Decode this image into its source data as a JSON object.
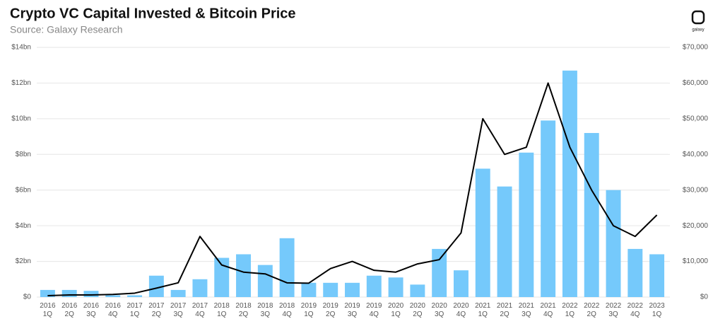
{
  "chart_data": {
    "type": "bar-line",
    "title": "Crypto VC Capital Invested & Bitcoin Price",
    "subtitle": "Source: Galaxy Research",
    "logo_text": "galaxy",
    "categories": [
      [
        "2016",
        "1Q"
      ],
      [
        "2016",
        "2Q"
      ],
      [
        "2016",
        "3Q"
      ],
      [
        "2016",
        "4Q"
      ],
      [
        "2017",
        "1Q"
      ],
      [
        "2017",
        "2Q"
      ],
      [
        "2017",
        "3Q"
      ],
      [
        "2017",
        "4Q"
      ],
      [
        "2018",
        "1Q"
      ],
      [
        "2018",
        "2Q"
      ],
      [
        "2018",
        "3Q"
      ],
      [
        "2018",
        "4Q"
      ],
      [
        "2019",
        "1Q"
      ],
      [
        "2019",
        "2Q"
      ],
      [
        "2019",
        "3Q"
      ],
      [
        "2019",
        "4Q"
      ],
      [
        "2020",
        "1Q"
      ],
      [
        "2020",
        "2Q"
      ],
      [
        "2020",
        "3Q"
      ],
      [
        "2020",
        "4Q"
      ],
      [
        "2021",
        "1Q"
      ],
      [
        "2021",
        "2Q"
      ],
      [
        "2021",
        "3Q"
      ],
      [
        "2021",
        "4Q"
      ],
      [
        "2022",
        "1Q"
      ],
      [
        "2022",
        "2Q"
      ],
      [
        "2022",
        "3Q"
      ],
      [
        "2022",
        "4Q"
      ],
      [
        "2023",
        "1Q"
      ]
    ],
    "series": [
      {
        "kind": "bar",
        "color": "#75c9fb",
        "values": [
          0.4,
          0.4,
          0.35,
          0.1,
          0.1,
          1.2,
          0.4,
          1.0,
          2.2,
          2.4,
          1.8,
          3.3,
          0.8,
          0.8,
          0.8,
          1.2,
          1.1,
          0.7,
          2.7,
          1.5,
          7.2,
          6.2,
          8.1,
          9.9,
          12.7,
          9.2,
          6.0,
          2.7,
          2.4
        ]
      },
      {
        "kind": "line",
        "axis": "y2",
        "color": "#000000",
        "values": [
          400,
          600,
          600,
          750,
          1100,
          2500,
          4000,
          17000,
          9000,
          7000,
          6500,
          4000,
          3900,
          8000,
          10000,
          7500,
          7000,
          9300,
          10500,
          18000,
          50000,
          40000,
          42000,
          60000,
          42000,
          30000,
          20000,
          17000,
          23000
        ]
      }
    ],
    "ylim": [
      0,
      14
    ],
    "yticks": [
      {
        "value": 0,
        "label": "$0"
      },
      {
        "value": 2,
        "label": "$2bn"
      },
      {
        "value": 4,
        "label": "$4bn"
      },
      {
        "value": 6,
        "label": "$6bn"
      },
      {
        "value": 8,
        "label": "$8bn"
      },
      {
        "value": 10,
        "label": "$10bn"
      },
      {
        "value": 12,
        "label": "$12bn"
      },
      {
        "value": 14,
        "label": "$14bn"
      }
    ],
    "y2lim": [
      0,
      70000
    ],
    "y2ticks": [
      {
        "value": 0,
        "label": "$0"
      },
      {
        "value": 10000,
        "label": "$10,000"
      },
      {
        "value": 20000,
        "label": "$20,000"
      },
      {
        "value": 30000,
        "label": "$30,000"
      },
      {
        "value": 40000,
        "label": "$40,000"
      },
      {
        "value": 50000,
        "label": "$50,000"
      },
      {
        "value": 60000,
        "label": "$60,000"
      },
      {
        "value": 70000,
        "label": "$70,000"
      }
    ],
    "grid": true
  }
}
